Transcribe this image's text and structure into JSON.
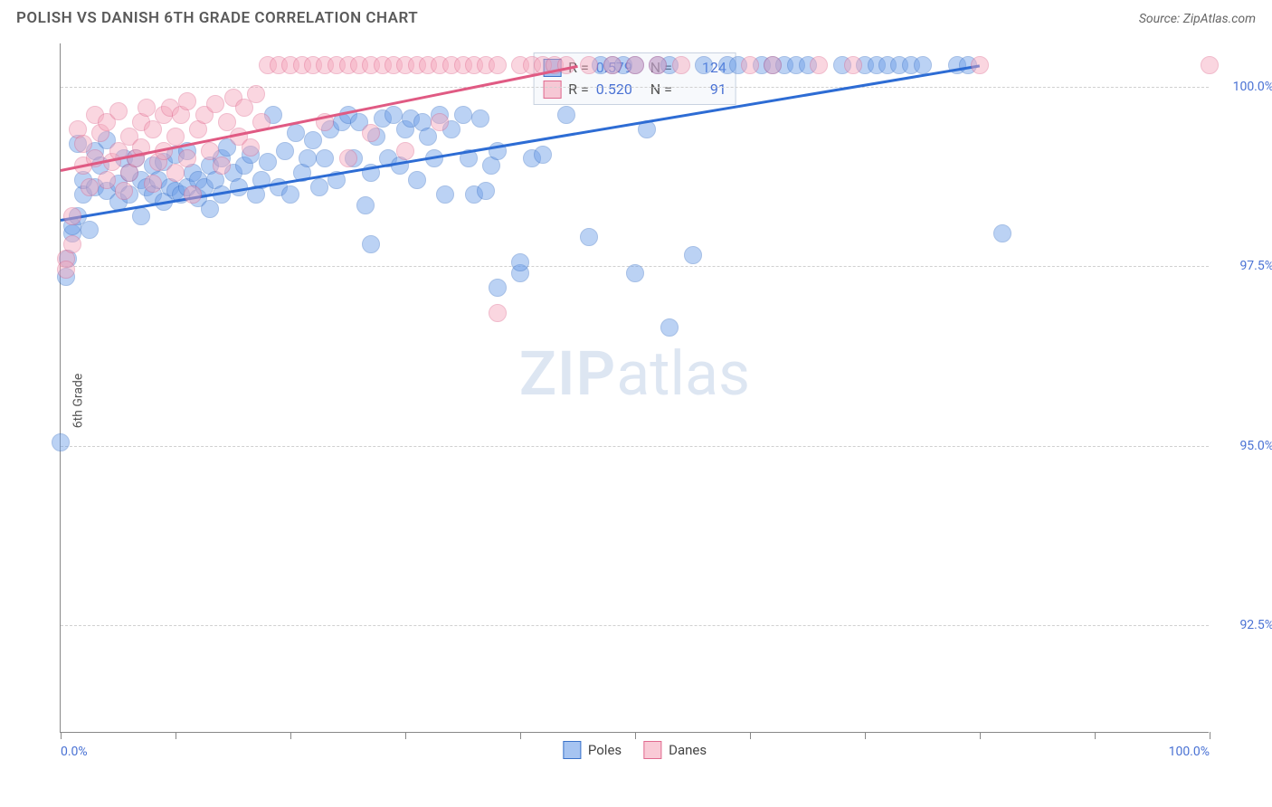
{
  "title": "POLISH VS DANISH 6TH GRADE CORRELATION CHART",
  "source": "Source: ZipAtlas.com",
  "yAxisLabel": "6th Grade",
  "watermark": {
    "bold": "ZIP",
    "rest": "atlas"
  },
  "chart": {
    "type": "scatter",
    "xlim": [
      0,
      100
    ],
    "ylim": [
      91,
      100.6
    ],
    "xTicks": [
      0,
      10,
      20,
      30,
      40,
      50,
      60,
      70,
      80,
      90,
      100
    ],
    "xTickLabels": {
      "0": "0.0%",
      "100": "100.0%"
    },
    "yGridLines": [
      92.5,
      95.0,
      97.5,
      100.0
    ],
    "yTickLabels": [
      "92.5%",
      "95.0%",
      "97.5%",
      "100.0%"
    ],
    "pointRadius": 10,
    "pointOpacity": 0.45,
    "colors": {
      "blue": {
        "fill": "#6b9de8",
        "stroke": "#3a72c9",
        "line": "#2d6cd4"
      },
      "pink": {
        "fill": "#f5a6bb",
        "stroke": "#e06a8f",
        "line": "#e05a83"
      },
      "grid": "#d0d0d0",
      "axis": "#888",
      "label": "#4a72d4",
      "bg": "#ffffff"
    },
    "series": [
      {
        "name": "Poles",
        "color": "blue",
        "R": "0.579",
        "N": "124",
        "trend": {
          "x1": 0,
          "y1": 98.15,
          "x2": 80,
          "y2": 100.3
        },
        "points": [
          [
            0,
            95.05
          ],
          [
            0.5,
            97.35
          ],
          [
            0.6,
            97.6
          ],
          [
            1,
            97.95
          ],
          [
            1,
            98.05
          ],
          [
            1.5,
            99.2
          ],
          [
            1.5,
            98.2
          ],
          [
            2,
            98.5
          ],
          [
            2,
            98.7
          ],
          [
            2.5,
            98.0
          ],
          [
            3,
            98.6
          ],
          [
            3,
            99.1
          ],
          [
            3.5,
            98.9
          ],
          [
            4,
            98.55
          ],
          [
            4,
            99.25
          ],
          [
            5,
            98.65
          ],
          [
            5,
            98.4
          ],
          [
            5.5,
            99.0
          ],
          [
            6,
            98.5
          ],
          [
            6,
            98.8
          ],
          [
            6.5,
            99.0
          ],
          [
            7,
            98.2
          ],
          [
            7,
            98.7
          ],
          [
            7.5,
            98.6
          ],
          [
            8,
            98.9
          ],
          [
            8,
            98.5
          ],
          [
            8.5,
            98.7
          ],
          [
            9,
            98.95
          ],
          [
            9,
            98.4
          ],
          [
            9.5,
            98.6
          ],
          [
            10,
            98.55
          ],
          [
            10,
            99.05
          ],
          [
            10.5,
            98.5
          ],
          [
            11,
            98.6
          ],
          [
            11,
            99.1
          ],
          [
            11.5,
            98.8
          ],
          [
            12,
            98.45
          ],
          [
            12,
            98.7
          ],
          [
            12.5,
            98.6
          ],
          [
            13,
            98.9
          ],
          [
            13,
            98.3
          ],
          [
            13.5,
            98.7
          ],
          [
            14,
            99.0
          ],
          [
            14,
            98.5
          ],
          [
            14.5,
            99.15
          ],
          [
            15,
            98.8
          ],
          [
            15.5,
            98.6
          ],
          [
            16,
            98.9
          ],
          [
            16.5,
            99.05
          ],
          [
            17,
            98.5
          ],
          [
            17.5,
            98.7
          ],
          [
            18,
            98.95
          ],
          [
            18.5,
            99.6
          ],
          [
            19,
            98.6
          ],
          [
            19.5,
            99.1
          ],
          [
            20,
            98.5
          ],
          [
            20.5,
            99.35
          ],
          [
            21,
            98.8
          ],
          [
            21.5,
            99.0
          ],
          [
            22,
            99.25
          ],
          [
            22.5,
            98.6
          ],
          [
            23,
            99.0
          ],
          [
            23.5,
            99.4
          ],
          [
            24,
            98.7
          ],
          [
            24.5,
            99.5
          ],
          [
            25,
            99.6
          ],
          [
            25.5,
            99.0
          ],
          [
            26,
            99.5
          ],
          [
            26.5,
            98.35
          ],
          [
            27,
            98.8
          ],
          [
            27.5,
            99.3
          ],
          [
            28,
            99.55
          ],
          [
            28.5,
            99.0
          ],
          [
            29,
            99.6
          ],
          [
            29.5,
            98.9
          ],
          [
            30,
            99.4
          ],
          [
            30.5,
            99.55
          ],
          [
            31,
            98.7
          ],
          [
            31.5,
            99.5
          ],
          [
            32,
            99.3
          ],
          [
            32.5,
            99.0
          ],
          [
            33,
            99.6
          ],
          [
            33.5,
            98.5
          ],
          [
            34,
            99.4
          ],
          [
            35,
            99.6
          ],
          [
            35.5,
            99.0
          ],
          [
            36,
            98.5
          ],
          [
            36.5,
            99.55
          ],
          [
            37,
            98.55
          ],
          [
            37.5,
            98.9
          ],
          [
            38,
            99.1
          ],
          [
            40,
            97.4
          ],
          [
            40,
            97.55
          ],
          [
            41,
            99.0
          ],
          [
            42,
            99.05
          ],
          [
            44,
            99.6
          ],
          [
            46,
            97.9
          ],
          [
            47,
            100.3
          ],
          [
            48,
            100.3
          ],
          [
            49,
            100.3
          ],
          [
            50,
            100.3
          ],
          [
            51,
            99.4
          ],
          [
            52,
            100.3
          ],
          [
            53,
            100.3
          ],
          [
            55,
            97.65
          ],
          [
            56,
            100.3
          ],
          [
            58,
            100.3
          ],
          [
            59,
            100.3
          ],
          [
            61,
            100.3
          ],
          [
            62,
            100.3
          ],
          [
            63,
            100.3
          ],
          [
            64,
            100.3
          ],
          [
            65,
            100.3
          ],
          [
            68,
            100.3
          ],
          [
            70,
            100.3
          ],
          [
            71,
            100.3
          ],
          [
            72,
            100.3
          ],
          [
            73,
            100.3
          ],
          [
            74,
            100.3
          ],
          [
            75,
            100.3
          ],
          [
            78,
            100.3
          ],
          [
            79,
            100.3
          ],
          [
            82,
            97.95
          ],
          [
            53,
            96.65
          ],
          [
            38,
            97.2
          ],
          [
            27,
            97.8
          ],
          [
            50,
            97.4
          ]
        ]
      },
      {
        "name": "Danes",
        "color": "pink",
        "R": "0.520",
        "N": "91",
        "trend": {
          "x1": 0,
          "y1": 98.85,
          "x2": 45,
          "y2": 100.3
        },
        "points": [
          [
            0.5,
            97.6
          ],
          [
            0.5,
            97.45
          ],
          [
            1,
            97.8
          ],
          [
            1,
            98.2
          ],
          [
            1.5,
            99.4
          ],
          [
            2,
            98.9
          ],
          [
            2,
            99.2
          ],
          [
            2.5,
            98.6
          ],
          [
            3,
            99.6
          ],
          [
            3,
            99.0
          ],
          [
            3.5,
            99.35
          ],
          [
            4,
            98.7
          ],
          [
            4,
            99.5
          ],
          [
            4.5,
            98.95
          ],
          [
            5,
            99.1
          ],
          [
            5,
            99.65
          ],
          [
            5.5,
            98.55
          ],
          [
            6,
            99.3
          ],
          [
            6,
            98.8
          ],
          [
            6.5,
            99.0
          ],
          [
            7,
            99.5
          ],
          [
            7,
            99.15
          ],
          [
            7.5,
            99.7
          ],
          [
            8,
            98.65
          ],
          [
            8,
            99.4
          ],
          [
            8.5,
            98.95
          ],
          [
            9,
            99.6
          ],
          [
            9,
            99.1
          ],
          [
            9.5,
            99.7
          ],
          [
            10,
            98.8
          ],
          [
            10,
            99.3
          ],
          [
            10.5,
            99.6
          ],
          [
            11,
            99.0
          ],
          [
            11,
            99.8
          ],
          [
            11.5,
            98.5
          ],
          [
            12,
            99.4
          ],
          [
            12.5,
            99.6
          ],
          [
            13,
            99.1
          ],
          [
            13.5,
            99.75
          ],
          [
            14,
            98.9
          ],
          [
            14.5,
            99.5
          ],
          [
            15,
            99.85
          ],
          [
            15.5,
            99.3
          ],
          [
            16,
            99.7
          ],
          [
            16.5,
            99.15
          ],
          [
            17,
            99.9
          ],
          [
            17.5,
            99.5
          ],
          [
            18,
            100.3
          ],
          [
            19,
            100.3
          ],
          [
            20,
            100.3
          ],
          [
            21,
            100.3
          ],
          [
            22,
            100.3
          ],
          [
            23,
            99.5
          ],
          [
            23,
            100.3
          ],
          [
            24,
            100.3
          ],
          [
            25,
            99.0
          ],
          [
            25,
            100.3
          ],
          [
            26,
            100.3
          ],
          [
            27,
            99.35
          ],
          [
            27,
            100.3
          ],
          [
            28,
            100.3
          ],
          [
            29,
            100.3
          ],
          [
            30,
            99.1
          ],
          [
            30,
            100.3
          ],
          [
            31,
            100.3
          ],
          [
            32,
            100.3
          ],
          [
            33,
            99.5
          ],
          [
            33,
            100.3
          ],
          [
            34,
            100.3
          ],
          [
            35,
            100.3
          ],
          [
            36,
            100.3
          ],
          [
            37,
            100.3
          ],
          [
            38,
            96.85
          ],
          [
            38,
            100.3
          ],
          [
            40,
            100.3
          ],
          [
            41,
            100.3
          ],
          [
            42,
            100.3
          ],
          [
            43,
            100.3
          ],
          [
            44,
            100.3
          ],
          [
            46,
            100.3
          ],
          [
            48,
            100.3
          ],
          [
            50,
            100.3
          ],
          [
            52,
            100.3
          ],
          [
            54,
            100.3
          ],
          [
            60,
            100.3
          ],
          [
            62,
            100.3
          ],
          [
            66,
            100.3
          ],
          [
            69,
            100.3
          ],
          [
            80,
            100.3
          ],
          [
            100,
            100.3
          ]
        ]
      }
    ],
    "bottomLegend": [
      {
        "label": "Poles",
        "color": "blue"
      },
      {
        "label": "Danes",
        "color": "pink"
      }
    ]
  }
}
